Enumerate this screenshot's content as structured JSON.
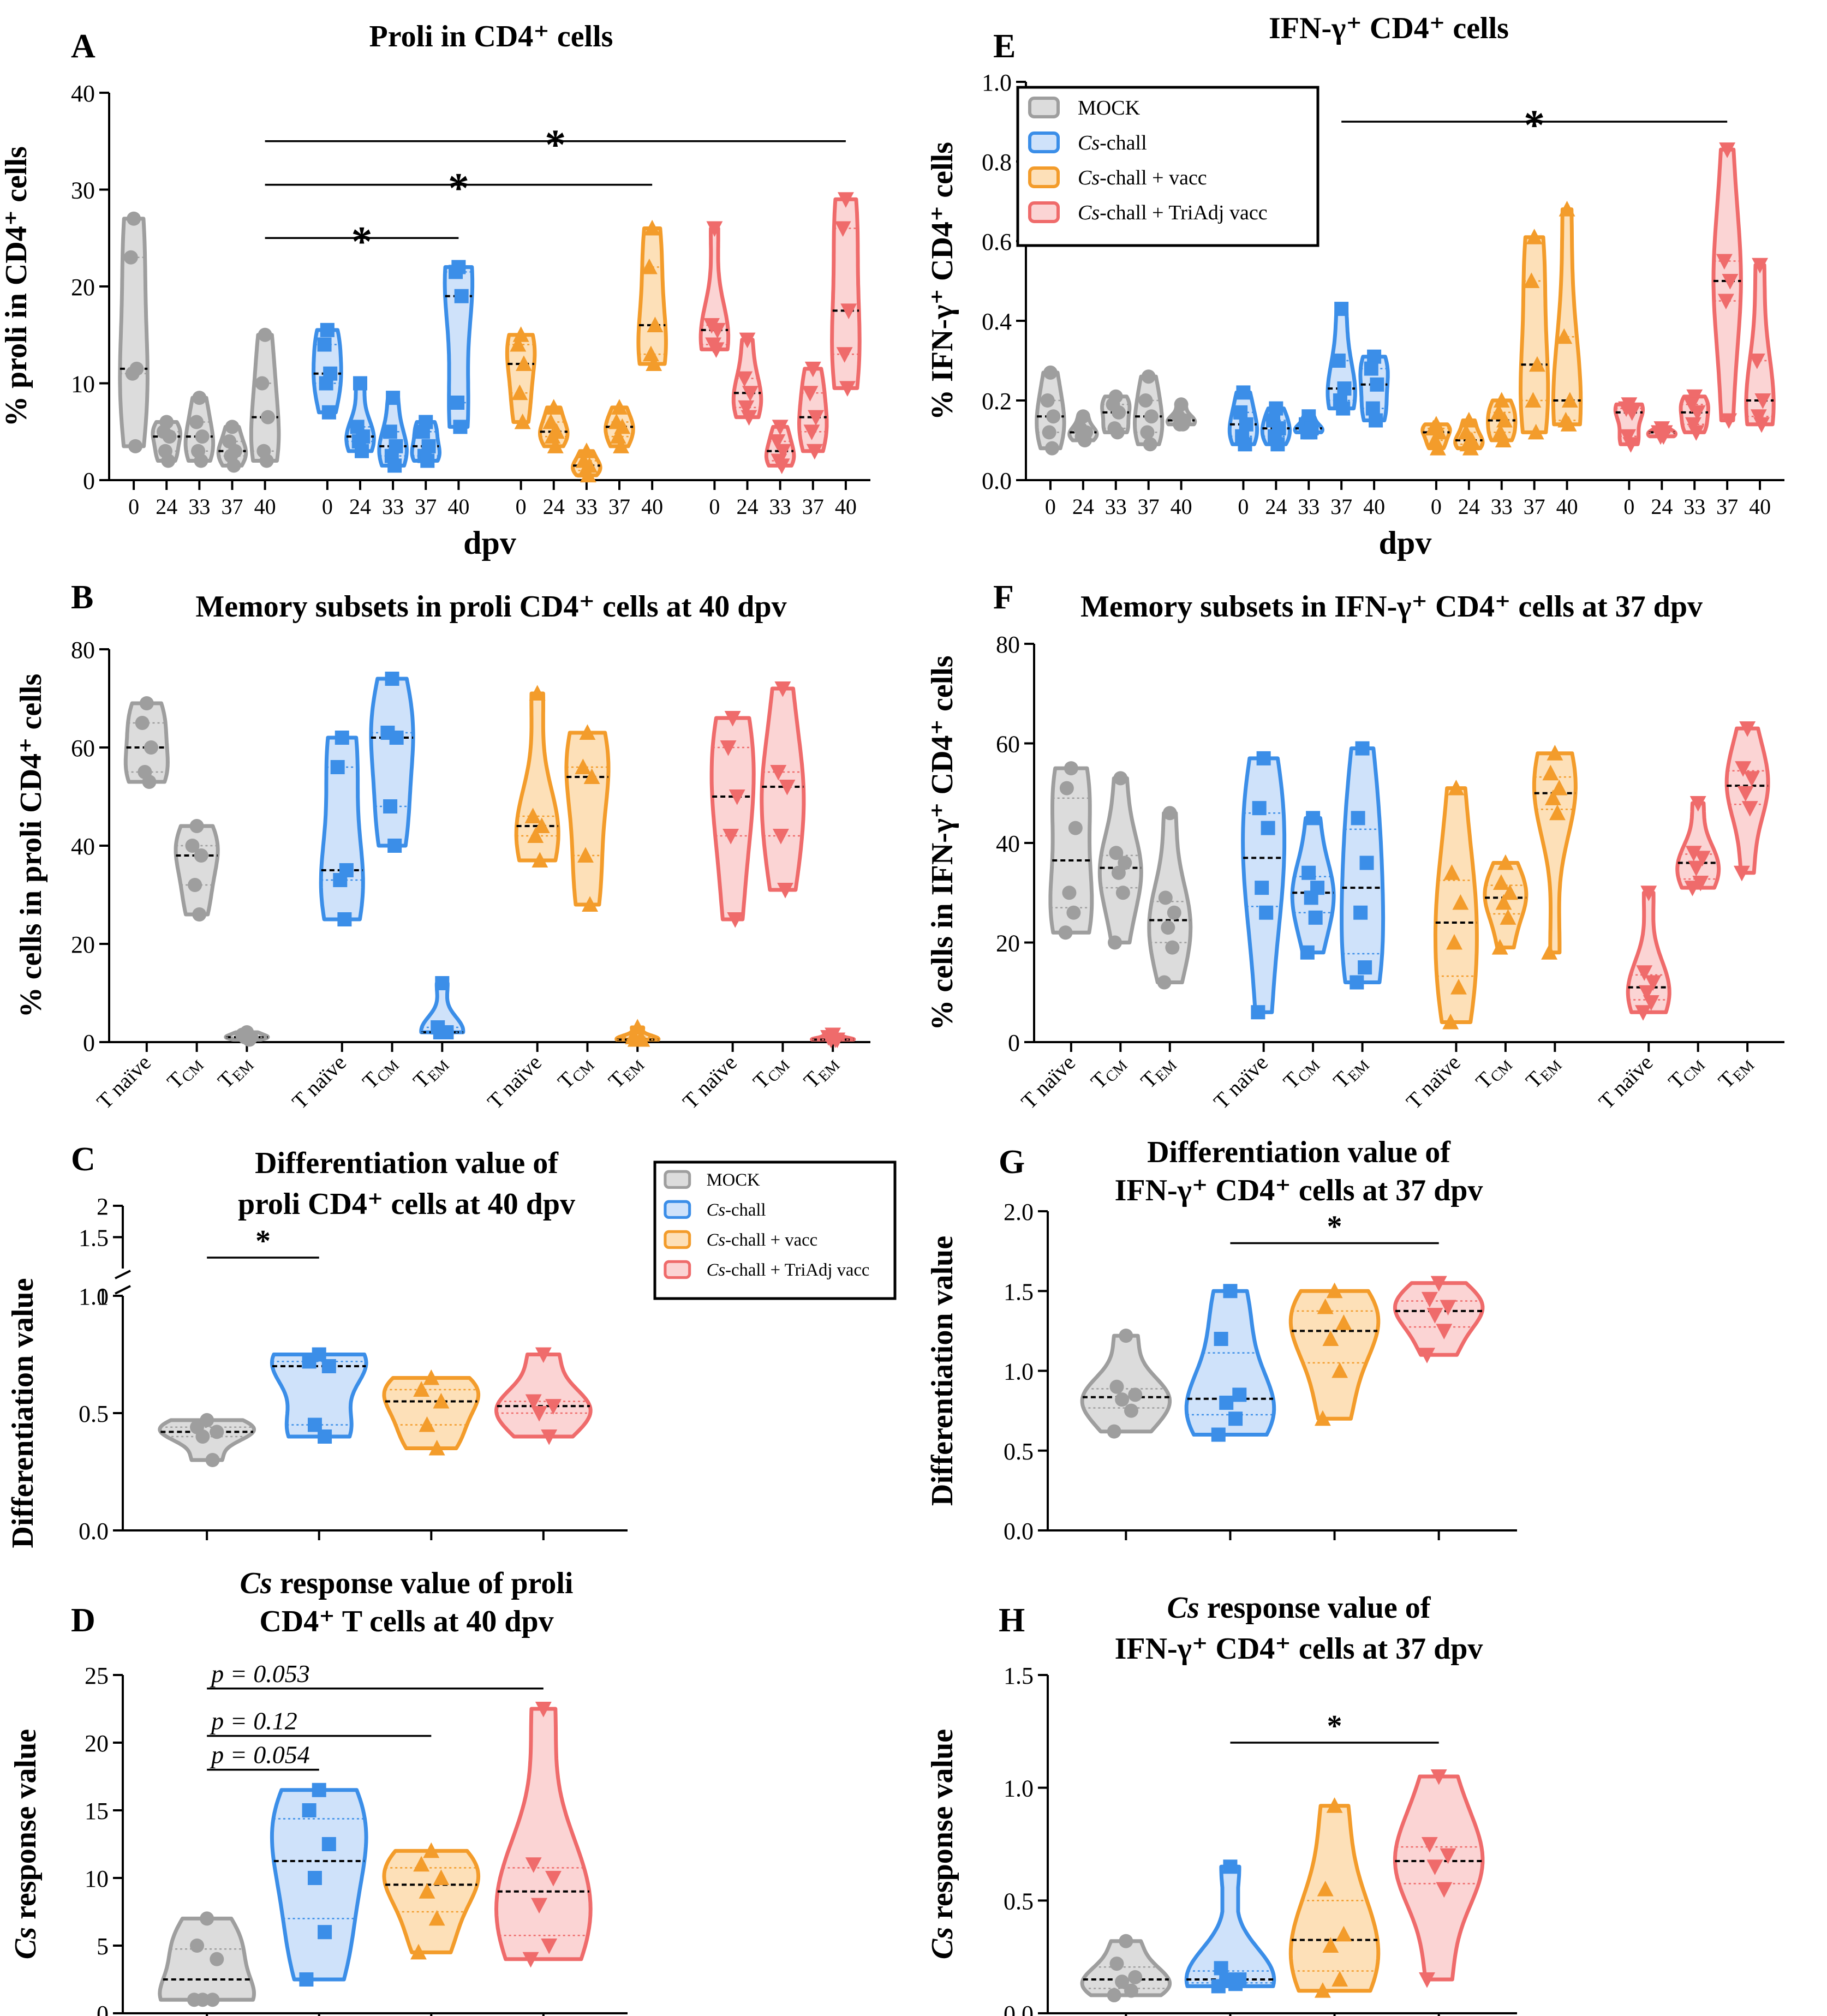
{
  "colors": {
    "mock": "#9e9e9e",
    "chall": "#3b8ee8",
    "vacc": "#f39c2b",
    "triadj": "#ef6b6b"
  },
  "legend": [
    "MOCK",
    "Cs-chall",
    "Cs-chall + vacc",
    "Cs-chall + TriAdj vacc"
  ],
  "groups": [
    "mock",
    "chall",
    "vacc",
    "triadj"
  ],
  "chart_data": [
    {
      "id": "A",
      "letter": "A",
      "type": "violin",
      "title": "Proli in CD4⁺ cells",
      "ylabel": "% proli in CD4⁺ cells",
      "xlabel": "dpv",
      "ylim": [
        0,
        40
      ],
      "yticks": [
        0,
        10,
        20,
        30,
        40
      ],
      "categories": [
        "0",
        "24",
        "33",
        "37",
        "40",
        "0",
        "24",
        "33",
        "37",
        "40",
        "0",
        "24",
        "33",
        "37",
        "40",
        "0",
        "24",
        "33",
        "37",
        "40"
      ],
      "series": [
        {
          "name": "MOCK",
          "group": "mock",
          "values": [
            [
              27,
              23,
              11.5,
              11,
              3.5
            ],
            [
              6,
              5,
              4.5,
              3,
              2
            ],
            [
              8.5,
              6,
              4.5,
              3,
              2
            ],
            [
              5.5,
              4,
              3,
              2.5,
              1.5
            ],
            [
              15,
              10,
              6.5,
              3,
              2
            ]
          ]
        },
        {
          "name": "Cs-chall",
          "group": "chall",
          "values": [
            [
              15.5,
              14,
              11,
              10,
              7
            ],
            [
              10,
              5.5,
              4.5,
              4,
              3
            ],
            [
              8.5,
              5,
              3.5,
              2.5,
              1.5
            ],
            [
              6,
              5,
              3.5,
              2.5,
              2
            ],
            [
              22,
              21.5,
              19,
              8,
              5.5
            ]
          ]
        },
        {
          "name": "Cs-chall + vacc",
          "group": "vacc",
          "values": [
            [
              15,
              14,
              12,
              9,
              6
            ],
            [
              7.5,
              6,
              5,
              4.5,
              3.5
            ],
            [
              3,
              2,
              1.5,
              1,
              0.5
            ],
            [
              7.5,
              6,
              5.5,
              4.5,
              3.5
            ],
            [
              26,
              22,
              16,
              13,
              12
            ]
          ]
        },
        {
          "name": "Cs-chall + TriAdj vacc",
          "group": "triadj",
          "values": [
            [
              26,
              16,
              15.5,
              14,
              13.5
            ],
            [
              14.5,
              10.5,
              9,
              7.5,
              6.5
            ],
            [
              5.5,
              4,
              3,
              2,
              1.5
            ],
            [
              11.5,
              9,
              6.5,
              5,
              3
            ],
            [
              29,
              26,
              17.5,
              13,
              9.5
            ]
          ]
        }
      ],
      "annotations": [
        {
          "from": 4,
          "to": 9,
          "label": "*",
          "y": 25
        },
        {
          "from": 4,
          "to": 14,
          "label": "*",
          "y": 30.5
        },
        {
          "from": 4,
          "to": 19,
          "label": "*",
          "y": 35
        }
      ]
    },
    {
      "id": "E",
      "letter": "E",
      "type": "violin",
      "title": "IFN-γ⁺ CD4⁺ cells",
      "ylabel": "% IFN-γ⁺ CD4⁺ cells",
      "xlabel": "dpv",
      "ylim": [
        0,
        1.0
      ],
      "yticks": [
        0.0,
        0.2,
        0.4,
        0.6,
        0.8,
        1.0
      ],
      "categories": [
        "0",
        "24",
        "33",
        "37",
        "40",
        "0",
        "24",
        "33",
        "37",
        "40",
        "0",
        "24",
        "33",
        "37",
        "40",
        "0",
        "24",
        "33",
        "37",
        "40"
      ],
      "series": [
        {
          "name": "MOCK",
          "group": "mock",
          "values": [
            [
              0.27,
              0.2,
              0.16,
              0.12,
              0.08
            ],
            [
              0.16,
              0.13,
              0.12,
              0.11,
              0.1
            ],
            [
              0.21,
              0.19,
              0.17,
              0.13,
              0.12
            ],
            [
              0.26,
              0.2,
              0.16,
              0.12,
              0.09
            ],
            [
              0.19,
              0.16,
              0.15,
              0.14,
              0.14
            ]
          ]
        },
        {
          "name": "Cs-chall",
          "group": "chall",
          "values": [
            [
              0.22,
              0.17,
              0.14,
              0.11,
              0.09
            ],
            [
              0.18,
              0.15,
              0.13,
              0.11,
              0.09
            ],
            [
              0.16,
              0.14,
              0.13,
              0.12,
              0.12
            ],
            [
              0.43,
              0.3,
              0.23,
              0.2,
              0.18
            ],
            [
              0.31,
              0.28,
              0.24,
              0.18,
              0.15
            ]
          ]
        },
        {
          "name": "Cs-chall + vacc",
          "group": "vacc",
          "values": [
            [
              0.14,
              0.13,
              0.12,
              0.1,
              0.08
            ],
            [
              0.15,
              0.12,
              0.1,
              0.09,
              0.08
            ],
            [
              0.2,
              0.17,
              0.15,
              0.12,
              0.1
            ],
            [
              0.61,
              0.5,
              0.29,
              0.2,
              0.12
            ],
            [
              0.68,
              0.36,
              0.2,
              0.15,
              0.14
            ]
          ]
        },
        {
          "name": "Cs-chall + TriAdj vacc",
          "group": "triadj",
          "values": [
            [
              0.19,
              0.18,
              0.17,
              0.11,
              0.09
            ],
            [
              0.13,
              0.12,
              0.12,
              0.11,
              0.11
            ],
            [
              0.21,
              0.19,
              0.17,
              0.14,
              0.12
            ],
            [
              0.83,
              0.55,
              0.5,
              0.45,
              0.15
            ],
            [
              0.54,
              0.3,
              0.2,
              0.16,
              0.14
            ]
          ]
        }
      ],
      "annotations": [
        {
          "from": 8,
          "to": 18,
          "label": "*",
          "y": 0.9
        }
      ]
    },
    {
      "id": "B",
      "letter": "B",
      "type": "violin",
      "title": "Memory subsets in proli CD4⁺ cells at 40 dpv",
      "ylabel": "% cells in proli CD4⁺ cells",
      "xlabel": "",
      "ylim": [
        0,
        80
      ],
      "yticks": [
        0,
        20,
        40,
        60,
        80
      ],
      "categories": [
        "T naïve",
        "TCM",
        "TEM",
        "T naïve",
        "TCM",
        "TEM",
        "T naïve",
        "TCM",
        "TEM",
        "T naïve",
        "TCM",
        "TEM"
      ],
      "series": [
        {
          "name": "MOCK",
          "group": "mock",
          "values": [
            [
              69,
              65,
              60,
              55,
              53
            ],
            [
              44,
              40,
              38,
              32,
              26
            ],
            [
              2,
              1.5,
              1,
              1,
              0.5
            ]
          ]
        },
        {
          "name": "Cs-chall",
          "group": "chall",
          "values": [
            [
              62,
              56,
              35,
              33,
              25
            ],
            [
              74,
              63,
              62,
              48,
              40
            ],
            [
              12,
              3,
              2,
              2,
              2
            ]
          ]
        },
        {
          "name": "Cs-chall + vacc",
          "group": "vacc",
          "values": [
            [
              71,
              46,
              44,
              42,
              37
            ],
            [
              63,
              56,
              54,
              38,
              28
            ],
            [
              3,
              1,
              0.5,
              0.5,
              0.5
            ]
          ]
        },
        {
          "name": "Cs-chall + TriAdj vacc",
          "group": "triadj",
          "values": [
            [
              66,
              60,
              50,
              42,
              25
            ],
            [
              72,
              55,
              52,
              42,
              31
            ],
            [
              1.5,
              1,
              0.5,
              0.5,
              0.5
            ]
          ]
        }
      ],
      "annotations": []
    },
    {
      "id": "F",
      "letter": "F",
      "type": "violin",
      "title": "Memory subsets in IFN-γ⁺ CD4⁺ cells at 37 dpv",
      "ylabel": "% cells in IFN-γ⁺ CD4⁺ cells",
      "xlabel": "",
      "ylim": [
        0,
        80
      ],
      "yticks": [
        0,
        20,
        40,
        60,
        80
      ],
      "categories": [
        "T naïve",
        "TCM",
        "TEM",
        "T naïve",
        "TCM",
        "TEM",
        "T naïve",
        "TCM",
        "TEM",
        "T naïve",
        "TCM",
        "TEM"
      ],
      "series": [
        {
          "name": "MOCK",
          "group": "mock",
          "values": [
            [
              55,
              51,
              43,
              30,
              26,
              22
            ],
            [
              53,
              38,
              36,
              34,
              30,
              20
            ],
            [
              46,
              29,
              26,
              23,
              19,
              12
            ]
          ]
        },
        {
          "name": "Cs-chall",
          "group": "chall",
          "values": [
            [
              57,
              47,
              43,
              31,
              26,
              6
            ],
            [
              45,
              34,
              31,
              29,
              25,
              18
            ],
            [
              59,
              45,
              36,
              26,
              15,
              12
            ]
          ]
        },
        {
          "name": "Cs-chall + vacc",
          "group": "vacc",
          "values": [
            [
              51,
              34,
              28,
              20,
              11,
              4
            ],
            [
              36,
              32,
              30,
              28,
              25,
              19
            ],
            [
              58,
              54,
              51,
              49,
              46,
              18
            ]
          ]
        },
        {
          "name": "Cs-chall + TriAdj vacc",
          "group": "triadj",
          "values": [
            [
              30,
              14,
              12,
              10,
              8,
              6
            ],
            [
              48,
              38,
              37,
              35,
              32,
              31
            ],
            [
              63,
              55,
              53,
              50,
              47,
              34
            ]
          ]
        }
      ],
      "annotations": []
    },
    {
      "id": "C",
      "letter": "C",
      "type": "violin",
      "title": "Differentiation value of proli CD4⁺ cells at 40 dpv",
      "ylabel": "Differentiation value",
      "xlabel": "",
      "ylim": [
        0,
        1.0
      ],
      "ylim_upper": [
        1.0,
        2.0
      ],
      "yticks": [
        0.0,
        0.5,
        1.0
      ],
      "yticks_upper": [
        1.0,
        1.5,
        2.0
      ],
      "categories": [
        "",
        "",
        "",
        ""
      ],
      "series": [
        {
          "name": "MOCK",
          "group": "mock",
          "values": [
            [
              0.47,
              0.44,
              0.42,
              0.4,
              0.3
            ]
          ]
        },
        {
          "name": "Cs-chall",
          "group": "chall",
          "values": [
            [
              0.75,
              0.72,
              0.7,
              0.45,
              0.4
            ]
          ]
        },
        {
          "name": "Cs-chall + vacc",
          "group": "vacc",
          "values": [
            [
              0.65,
              0.6,
              0.55,
              0.45,
              0.35
            ]
          ]
        },
        {
          "name": "Cs-chall + TriAdj vacc",
          "group": "triadj",
          "values": [
            [
              0.75,
              0.55,
              0.53,
              0.5,
              0.4
            ]
          ]
        }
      ],
      "annotations": [
        {
          "from": 0,
          "to": 1,
          "label": "*"
        }
      ]
    },
    {
      "id": "G",
      "letter": "G",
      "type": "violin",
      "title": "Differentiation value of IFN-γ⁺ CD4⁺ cells at 37 dpv",
      "ylabel": "Differentiation value",
      "xlabel": "",
      "ylim": [
        0,
        2.0
      ],
      "yticks": [
        0.0,
        0.5,
        1.0,
        1.5,
        2.0
      ],
      "categories": [
        "",
        "",
        "",
        ""
      ],
      "series": [
        {
          "name": "MOCK",
          "group": "mock",
          "values": [
            [
              1.22,
              0.9,
              0.85,
              0.82,
              0.75,
              0.62
            ]
          ]
        },
        {
          "name": "Cs-chall",
          "group": "chall",
          "values": [
            [
              1.5,
              1.2,
              0.85,
              0.8,
              0.7,
              0.6
            ]
          ]
        },
        {
          "name": "Cs-chall + vacc",
          "group": "vacc",
          "values": [
            [
              1.5,
              1.4,
              1.3,
              1.2,
              1.0,
              0.7
            ]
          ]
        },
        {
          "name": "Cs-chall + TriAdj vacc",
          "group": "triadj",
          "values": [
            [
              1.55,
              1.45,
              1.4,
              1.35,
              1.25,
              1.1
            ]
          ]
        }
      ],
      "annotations": [
        {
          "from": 1,
          "to": 3,
          "label": "*",
          "y": 1.8
        }
      ]
    },
    {
      "id": "D",
      "letter": "D",
      "type": "violin",
      "title": "Cs response value of proli CD4⁺ T cells at 40 dpv",
      "ylabel": "Cs response value",
      "xlabel": "",
      "ylim": [
        0,
        25
      ],
      "yticks": [
        0,
        5,
        10,
        15,
        20,
        25
      ],
      "categories": [
        "",
        "",
        "",
        ""
      ],
      "series": [
        {
          "name": "MOCK",
          "group": "mock",
          "values": [
            [
              7,
              5,
              4,
              1,
              1,
              1
            ]
          ]
        },
        {
          "name": "Cs-chall",
          "group": "chall",
          "values": [
            [
              16.5,
              15,
              12.5,
              10,
              6,
              2.5
            ]
          ]
        },
        {
          "name": "Cs-chall + vacc",
          "group": "vacc",
          "values": [
            [
              12,
              11,
              10,
              9,
              7,
              4.5
            ]
          ]
        },
        {
          "name": "Cs-chall + TriAdj vacc",
          "group": "triadj",
          "values": [
            [
              22.5,
              11,
              10,
              8,
              5,
              4
            ]
          ]
        }
      ],
      "annotations": [
        {
          "from": 0,
          "to": 1,
          "label": "p = 0.054",
          "y": 18
        },
        {
          "from": 0,
          "to": 2,
          "label": "p = 0.12",
          "y": 20.5
        },
        {
          "from": 0,
          "to": 3,
          "label": "p = 0.053",
          "y": 24
        }
      ]
    },
    {
      "id": "H",
      "letter": "H",
      "type": "violin",
      "title": "Cs response value of IFN-γ⁺ CD4⁺ cells at 37 dpv",
      "ylabel": "Cs response value",
      "xlabel": "",
      "ylim": [
        0,
        1.5
      ],
      "yticks": [
        0.0,
        0.5,
        1.0,
        1.5
      ],
      "categories": [
        "",
        "",
        "",
        ""
      ],
      "series": [
        {
          "name": "MOCK",
          "group": "mock",
          "values": [
            [
              0.32,
              0.22,
              0.16,
              0.14,
              0.1,
              0.08
            ]
          ]
        },
        {
          "name": "Cs-chall",
          "group": "chall",
          "values": [
            [
              0.65,
              0.2,
              0.15,
              0.15,
              0.13,
              0.12
            ]
          ]
        },
        {
          "name": "Cs-chall + vacc",
          "group": "vacc",
          "values": [
            [
              0.92,
              0.55,
              0.35,
              0.3,
              0.15,
              0.1
            ]
          ]
        },
        {
          "name": "Cs-chall + TriAdj vacc",
          "group": "triadj",
          "values": [
            [
              1.05,
              0.75,
              0.7,
              0.65,
              0.55,
              0.15
            ]
          ]
        }
      ],
      "annotations": [
        {
          "from": 1,
          "to": 3,
          "label": "*",
          "y": 1.2
        }
      ]
    }
  ]
}
